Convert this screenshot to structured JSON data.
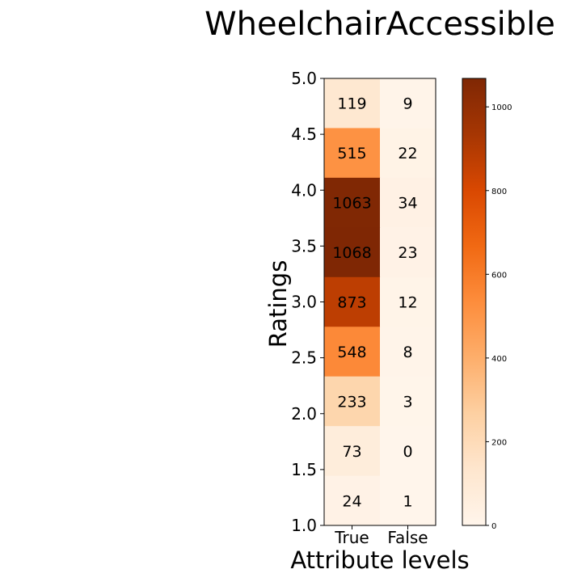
{
  "chart_data": {
    "type": "heatmap",
    "title": "WheelchairAccessible",
    "xlabel": "Attribute levels",
    "ylabel": "Ratings",
    "x_categories": [
      "True",
      "False"
    ],
    "y_ticks": [
      "5.0",
      "4.5",
      "4.0",
      "3.5",
      "3.0",
      "2.5",
      "2.0",
      "1.5",
      "1.0"
    ],
    "rows": [
      {
        "rating_label": "5.0",
        "values": [
          119,
          9
        ]
      },
      {
        "rating_label": "4.5",
        "values": [
          515,
          22
        ]
      },
      {
        "rating_label": "4.0",
        "values": [
          1063,
          34
        ]
      },
      {
        "rating_label": "3.5",
        "values": [
          1068,
          23
        ]
      },
      {
        "rating_label": "3.0",
        "values": [
          873,
          12
        ]
      },
      {
        "rating_label": "2.5",
        "values": [
          548,
          8
        ]
      },
      {
        "rating_label": "2.0",
        "values": [
          233,
          3
        ]
      },
      {
        "rating_label": "1.5",
        "values": [
          73,
          0
        ]
      },
      {
        "rating_label": "1.0",
        "values": [
          24,
          1
        ]
      }
    ],
    "colorbar": {
      "colormap": "Oranges",
      "range": [
        0,
        1068
      ],
      "ticks": [
        "0",
        "200",
        "400",
        "600",
        "800",
        "1000"
      ]
    },
    "grid": false,
    "legend": "colorbar-right"
  }
}
